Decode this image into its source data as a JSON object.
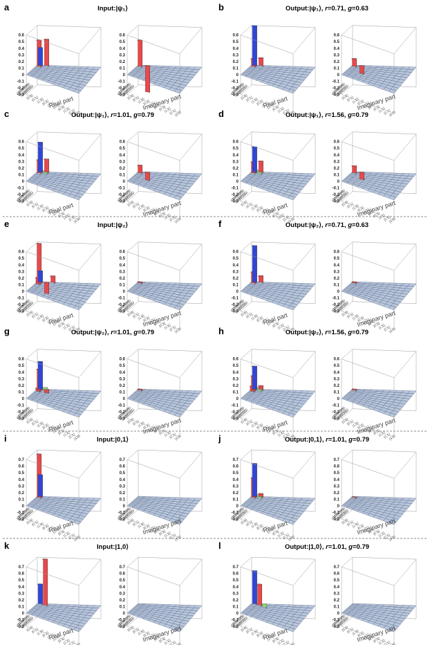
{
  "figure": {
    "part_labels": {
      "real": "Real part",
      "imag": "Imaginary part"
    },
    "basis_labels": [
      "|0,0⟩",
      "|0,1⟩",
      "|1,0⟩",
      "|0,2⟩",
      "|1,1⟩",
      "|2,0⟩",
      "|0,3⟩",
      "|1,2⟩",
      "|2,1⟩",
      "|3,0⟩"
    ],
    "colors": {
      "blue": "#2f46d8",
      "red": "#e8494b",
      "green": "#8ee07a",
      "floor": "#b9c7dd",
      "grid": "#4a5a78"
    }
  },
  "chart_data": [
    {
      "type": "bar3d",
      "panel_label": "a",
      "title": "Input:|ψ₁⟩",
      "title_parts": [
        {
          "t": "Input:|ψ",
          "i": false
        },
        {
          "t": "₁",
          "i": false
        },
        {
          "t": "⟩",
          "i": false
        }
      ],
      "yticks": [
        "0.6",
        "0.5",
        "0.4",
        "0.3",
        "0.2",
        "0.1",
        "0",
        "-0.1",
        "-0.2",
        "-0.3"
      ],
      "zlim": [
        -0.3,
        0.6
      ],
      "real": [
        {
          "i": 0,
          "j": 0,
          "v": 0.27,
          "c": "blue"
        },
        {
          "i": 0,
          "j": 1,
          "v": 0.4,
          "c": "red"
        },
        {
          "i": 1,
          "j": 0,
          "v": 0.4,
          "c": "red"
        }
      ],
      "imag": [
        {
          "i": 0,
          "j": 1,
          "v": 0.4,
          "c": "red"
        },
        {
          "i": 1,
          "j": 0,
          "v": -0.4,
          "c": "red"
        }
      ]
    },
    {
      "type": "bar3d",
      "panel_label": "b",
      "title": "Output:|ψ₁⟩, r=0.71, g=0.63",
      "title_parts": [
        {
          "t": "Output:|ψ₁⟩, ",
          "i": false
        },
        {
          "t": "r",
          "i": true
        },
        {
          "t": "=0.71, ",
          "i": false
        },
        {
          "t": "g",
          "i": true
        },
        {
          "t": "=0.63",
          "i": false
        }
      ],
      "yticks": [
        "0.6",
        "0.5",
        "0.4",
        "0.3",
        "0.2",
        "0.1",
        "0",
        "-0.1",
        "-0.2",
        "-0.3"
      ],
      "zlim": [
        -0.3,
        0.6
      ],
      "real": [
        {
          "i": 0,
          "j": 0,
          "v": 0.6,
          "c": "blue"
        },
        {
          "i": 0,
          "j": 1,
          "v": 0.12,
          "c": "red"
        },
        {
          "i": 1,
          "j": 0,
          "v": 0.12,
          "c": "red"
        }
      ],
      "imag": [
        {
          "i": 0,
          "j": 1,
          "v": 0.12,
          "c": "red"
        },
        {
          "i": 1,
          "j": 0,
          "v": -0.12,
          "c": "red"
        }
      ]
    },
    {
      "type": "bar3d",
      "panel_label": "c",
      "title": "Output:|ψ₁⟩, r=1.01, g=0.79",
      "title_parts": [
        {
          "t": "Output:|ψ₁⟩, ",
          "i": false
        },
        {
          "t": "r",
          "i": true
        },
        {
          "t": "=1.01, ",
          "i": false
        },
        {
          "t": "g",
          "i": true
        },
        {
          "t": "=0.79",
          "i": false
        }
      ],
      "yticks": [
        "0.6",
        "0.5",
        "0.4",
        "0.3",
        "0.2",
        "0.1",
        "0",
        "-0.1",
        "-0.2",
        "-0.3"
      ],
      "zlim": [
        -0.3,
        0.6
      ],
      "real": [
        {
          "i": 0,
          "j": 0,
          "v": 0.45,
          "c": "blue"
        },
        {
          "i": 0,
          "j": 1,
          "v": 0.2,
          "c": "red"
        },
        {
          "i": 1,
          "j": 0,
          "v": 0.2,
          "c": "red"
        },
        {
          "i": 1,
          "j": 1,
          "v": 0.04,
          "c": "green"
        }
      ],
      "imag": [
        {
          "i": 0,
          "j": 1,
          "v": 0.12,
          "c": "red"
        },
        {
          "i": 1,
          "j": 0,
          "v": -0.12,
          "c": "red"
        }
      ]
    },
    {
      "type": "bar3d",
      "panel_label": "d",
      "title": "Output:|ψ₁⟩, r=1.56, g=0.79",
      "title_parts": [
        {
          "t": "Output:|ψ₁⟩, ",
          "i": false
        },
        {
          "t": "r",
          "i": true
        },
        {
          "t": "=1.56, ",
          "i": false
        },
        {
          "t": "g",
          "i": true
        },
        {
          "t": "=0.79",
          "i": false
        }
      ],
      "yticks": [
        "0.6",
        "0.5",
        "0.4",
        "0.3",
        "0.2",
        "0.1",
        "0",
        "-0.1",
        "-0.2",
        "-0.3"
      ],
      "zlim": [
        -0.3,
        0.6
      ],
      "real": [
        {
          "i": 0,
          "j": 0,
          "v": 0.38,
          "c": "blue"
        },
        {
          "i": 0,
          "j": 1,
          "v": 0.17,
          "c": "red"
        },
        {
          "i": 1,
          "j": 0,
          "v": 0.17,
          "c": "red"
        },
        {
          "i": 1,
          "j": 1,
          "v": 0.05,
          "c": "green"
        }
      ],
      "imag": [
        {
          "i": 0,
          "j": 1,
          "v": 0.11,
          "c": "red"
        },
        {
          "i": 1,
          "j": 0,
          "v": -0.11,
          "c": "red"
        }
      ]
    },
    {
      "type": "bar3d",
      "panel_label": "e",
      "title": "Input:|ψ₂⟩",
      "title_parts": [
        {
          "t": "Input:|ψ₂⟩",
          "i": false
        }
      ],
      "yticks": [
        "0.6",
        "0.5",
        "0.4",
        "0.3",
        "0.2",
        "0.1",
        "0",
        "-0.1",
        "-0.2",
        "-0.3"
      ],
      "zlim": [
        -0.3,
        0.6
      ],
      "real": [
        {
          "i": 0,
          "j": 0,
          "v": 0.17,
          "c": "blue"
        },
        {
          "i": 0,
          "j": 1,
          "v": 0.6,
          "c": "red"
        },
        {
          "i": 1,
          "j": 0,
          "v": -0.17,
          "c": "red"
        },
        {
          "i": 0,
          "j": 2,
          "v": 0.1,
          "c": "red"
        },
        {
          "i": 2,
          "j": 0,
          "v": 0.1,
          "c": "red"
        }
      ],
      "imag": [
        {
          "i": 0,
          "j": 1,
          "v": 0.02,
          "c": "red"
        }
      ]
    },
    {
      "type": "bar3d",
      "panel_label": "f",
      "title": "Output:|ψ₂⟩, r=0.71, g=0.63",
      "title_parts": [
        {
          "t": "Output:|ψ₂⟩, ",
          "i": false
        },
        {
          "t": "r",
          "i": true
        },
        {
          "t": "=0.71, ",
          "i": false
        },
        {
          "t": "g",
          "i": true
        },
        {
          "t": "=0.63",
          "i": false
        }
      ],
      "yticks": [
        "0.6",
        "0.5",
        "0.4",
        "0.3",
        "0.2",
        "0.1",
        "0",
        "-0.1",
        "-0.2",
        "-0.3"
      ],
      "zlim": [
        -0.3,
        0.6
      ],
      "real": [
        {
          "i": 0,
          "j": 0,
          "v": 0.55,
          "c": "blue"
        },
        {
          "i": 0,
          "j": 1,
          "v": 0.17,
          "c": "red"
        },
        {
          "i": 1,
          "j": 0,
          "v": 0.1,
          "c": "red"
        }
      ],
      "imag": [
        {
          "i": 0,
          "j": 1,
          "v": 0.02,
          "c": "red"
        }
      ]
    },
    {
      "type": "bar3d",
      "panel_label": "g",
      "title": "Output:|ψ₂⟩, r=1.01, g=0.79",
      "title_parts": [
        {
          "t": "Output:|ψ₂⟩, ",
          "i": false
        },
        {
          "t": "r",
          "i": true
        },
        {
          "t": "=1.01, ",
          "i": false
        },
        {
          "t": "g",
          "i": true
        },
        {
          "t": "=0.79",
          "i": false
        }
      ],
      "yticks": [
        "0.6",
        "0.5",
        "0.4",
        "0.3",
        "0.2",
        "0.1",
        "0",
        "-0.1",
        "-0.2",
        "-0.3"
      ],
      "zlim": [
        -0.3,
        0.6
      ],
      "real": [
        {
          "i": 0,
          "j": 0,
          "v": 0.42,
          "c": "blue"
        },
        {
          "i": 0,
          "j": 1,
          "v": 0.32,
          "c": "red"
        },
        {
          "i": 1,
          "j": 0,
          "v": -0.05,
          "c": "red"
        },
        {
          "i": 0,
          "j": 2,
          "v": 0.05,
          "c": "red"
        },
        {
          "i": 1,
          "j": 1,
          "v": 0.05,
          "c": "green"
        }
      ],
      "imag": [
        {
          "i": 0,
          "j": 1,
          "v": 0.02,
          "c": "red"
        }
      ]
    },
    {
      "type": "bar3d",
      "panel_label": "h",
      "title": "Output:|ψ₂⟩, r=1.56, g=0.79",
      "title_parts": [
        {
          "t": "Output:|ψ₂⟩, ",
          "i": false
        },
        {
          "t": "r",
          "i": true
        },
        {
          "t": "=1.56, ",
          "i": false
        },
        {
          "t": "g",
          "i": true
        },
        {
          "t": "=0.79",
          "i": false
        }
      ],
      "yticks": [
        "0.6",
        "0.5",
        "0.4",
        "0.3",
        "0.2",
        "0.1",
        "0",
        "-0.1",
        "-0.2",
        "-0.3"
      ],
      "zlim": [
        -0.3,
        0.6
      ],
      "real": [
        {
          "i": 0,
          "j": 0,
          "v": 0.35,
          "c": "blue"
        },
        {
          "i": 0,
          "j": 1,
          "v": 0.22,
          "c": "red"
        },
        {
          "i": 1,
          "j": 0,
          "v": 0.06,
          "c": "red"
        },
        {
          "i": 0,
          "j": 2,
          "v": 0.08,
          "c": "red"
        },
        {
          "i": 1,
          "j": 1,
          "v": 0.05,
          "c": "green"
        }
      ],
      "imag": [
        {
          "i": 0,
          "j": 1,
          "v": 0.02,
          "c": "red"
        }
      ]
    },
    {
      "type": "bar3d",
      "panel_label": "i",
      "title": "Input:|0,1⟩",
      "title_parts": [
        {
          "t": "Input:|0,1⟩",
          "i": false
        }
      ],
      "yticks": [
        "0.7",
        "0.6",
        "0.5",
        "0.4",
        "0.3",
        "0.2",
        "0.1",
        "0",
        "-0.1",
        "-0.2"
      ],
      "zlim": [
        -0.2,
        0.7
      ],
      "real": [
        {
          "i": 0,
          "j": 0,
          "v": 0.33,
          "c": "blue"
        },
        {
          "i": 0,
          "j": 1,
          "v": 0.66,
          "c": "red"
        }
      ],
      "imag": []
    },
    {
      "type": "bar3d",
      "panel_label": "j",
      "title": "Output:|0,1⟩, r=1.01, g=0.79",
      "title_parts": [
        {
          "t": "Output:|0,1⟩, ",
          "i": false
        },
        {
          "t": "r",
          "i": true
        },
        {
          "t": "=1.01, ",
          "i": false
        },
        {
          "t": "g",
          "i": true
        },
        {
          "t": "=0.79",
          "i": false
        }
      ],
      "yticks": [
        "0.7",
        "0.6",
        "0.5",
        "0.4",
        "0.3",
        "0.2",
        "0.1",
        "0",
        "-0.1",
        "-0.2"
      ],
      "zlim": [
        -0.2,
        0.7
      ],
      "real": [
        {
          "i": 0,
          "j": 0,
          "v": 0.5,
          "c": "blue"
        },
        {
          "i": 0,
          "j": 1,
          "v": 0.3,
          "c": "red"
        },
        {
          "i": 1,
          "j": 0,
          "v": 0.05,
          "c": "red"
        },
        {
          "i": 1,
          "j": 1,
          "v": 0.05,
          "c": "green"
        }
      ],
      "imag": [
        {
          "i": 0,
          "j": 1,
          "v": 0.01,
          "c": "red"
        }
      ]
    },
    {
      "type": "bar3d",
      "panel_label": "k",
      "title": "Input:|1,0⟩",
      "title_parts": [
        {
          "t": "Input:|1,0⟩",
          "i": false
        }
      ],
      "yticks": [
        "0.7",
        "0.6",
        "0.5",
        "0.4",
        "0.3",
        "0.2",
        "0.1",
        "0",
        "-0.1",
        "-0.2"
      ],
      "zlim": [
        -0.2,
        0.7
      ],
      "real": [
        {
          "i": 0,
          "j": 0,
          "v": 0.3,
          "c": "blue"
        },
        {
          "i": 1,
          "j": 1,
          "v": 0.7,
          "c": "red"
        }
      ],
      "imag": []
    },
    {
      "type": "bar3d",
      "panel_label": "l",
      "title": "Output:|1,0⟩, r=1.01, g=0.79",
      "title_parts": [
        {
          "t": "Output:|1,0⟩, ",
          "i": false
        },
        {
          "t": "r",
          "i": true
        },
        {
          "t": "=1.01, ",
          "i": false
        },
        {
          "t": "g",
          "i": true
        },
        {
          "t": "=0.79",
          "i": false
        }
      ],
      "yticks": [
        "0.7",
        "0.6",
        "0.5",
        "0.4",
        "0.3",
        "0.2",
        "0.1",
        "0",
        "-0.1",
        "-0.2"
      ],
      "zlim": [
        -0.2,
        0.7
      ],
      "real": [
        {
          "i": 0,
          "j": 0,
          "v": 0.5,
          "c": "blue"
        },
        {
          "i": 1,
          "j": 1,
          "v": 0.32,
          "c": "red"
        },
        {
          "i": 2,
          "j": 2,
          "v": 0.05,
          "c": "green"
        }
      ],
      "imag": []
    }
  ]
}
